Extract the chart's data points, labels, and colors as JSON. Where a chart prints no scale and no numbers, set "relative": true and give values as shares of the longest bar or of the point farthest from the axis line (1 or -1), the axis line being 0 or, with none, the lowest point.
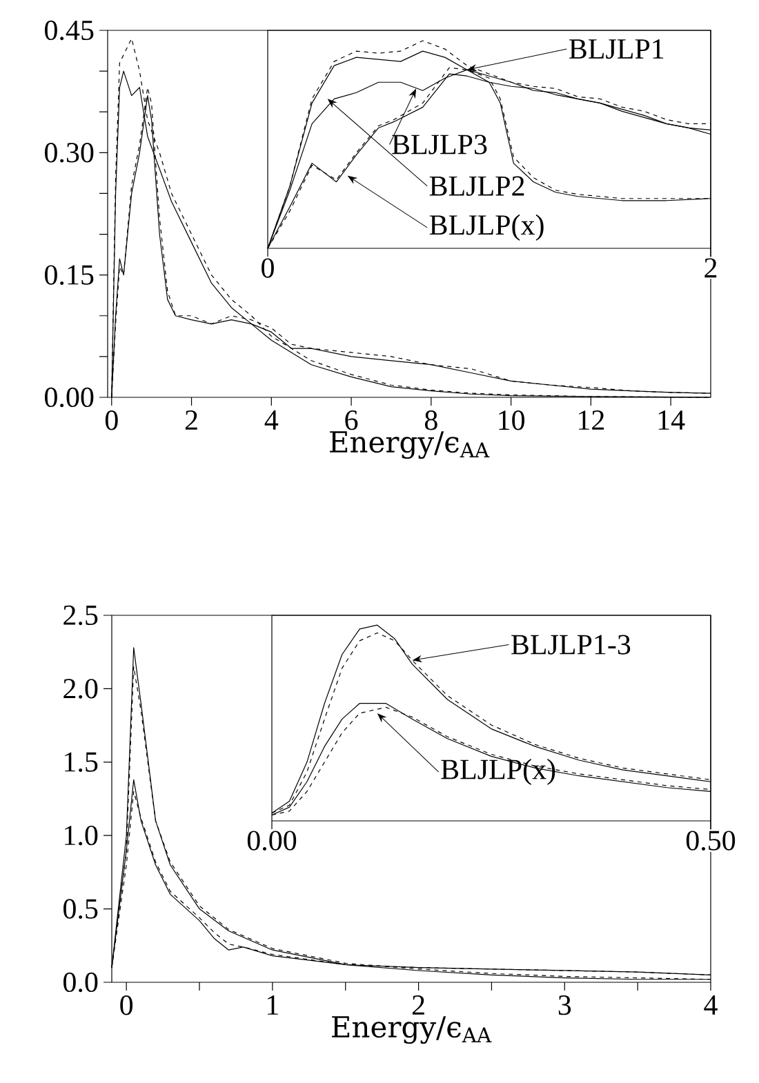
{
  "chart_data": [
    {
      "type": "line",
      "xlabel": "Energy/ϵ$_{AA}$",
      "xlim": [
        -0.1,
        15
      ],
      "ylim": [
        0,
        0.45
      ],
      "xticks": [
        0,
        2,
        4,
        6,
        8,
        10,
        12,
        14
      ],
      "yticks": [
        {
          "value": 0,
          "label": "0.00"
        },
        {
          "value": 0.05,
          "label": null
        },
        {
          "value": 0.1,
          "label": null
        },
        {
          "value": 0.15,
          "label": "0.15"
        },
        {
          "value": 0.2,
          "label": null
        },
        {
          "value": 0.25,
          "label": null
        },
        {
          "value": 0.3,
          "label": "0.30"
        },
        {
          "value": 0.35,
          "label": null
        },
        {
          "value": 0.4,
          "label": null
        },
        {
          "value": 0.45,
          "label": "0.45"
        }
      ],
      "series": [
        {
          "color": "#000000",
          "line_style": "solid",
          "x": [
            0,
            0.1,
            0.2,
            0.3,
            0.5,
            0.7,
            0.9,
            1.2,
            1.5,
            2,
            2.5,
            3,
            3.5,
            4,
            4.5,
            5,
            6,
            7,
            8,
            9,
            10,
            12,
            15
          ],
          "values": [
            0,
            0.25,
            0.38,
            0.4,
            0.37,
            0.38,
            0.32,
            0.28,
            0.24,
            0.19,
            0.14,
            0.11,
            0.09,
            0.07,
            0.055,
            0.04,
            0.025,
            0.013,
            0.008,
            0.004,
            0.002,
            0.001,
            0
          ]
        },
        {
          "color": "#000000",
          "line_style": "dashed",
          "x": [
            0,
            0.1,
            0.2,
            0.3,
            0.5,
            0.7,
            0.9,
            1.2,
            1.5,
            2,
            2.5,
            3,
            3.5,
            4,
            4.5,
            5,
            6,
            7,
            8,
            9,
            10,
            12,
            15
          ],
          "values": [
            0,
            0.27,
            0.41,
            0.42,
            0.44,
            0.4,
            0.34,
            0.3,
            0.25,
            0.2,
            0.15,
            0.12,
            0.1,
            0.075,
            0.06,
            0.045,
            0.028,
            0.015,
            0.009,
            0.005,
            0.003,
            0.001,
            0
          ]
        },
        {
          "color": "#000000",
          "line_style": "solid",
          "x": [
            0,
            0.1,
            0.2,
            0.3,
            0.5,
            0.7,
            0.9,
            1.0,
            1.2,
            1.4,
            1.6,
            2,
            2.5,
            3,
            3.5,
            4,
            4.5,
            5,
            6,
            7,
            8,
            9,
            10,
            11,
            12,
            13,
            14,
            15
          ],
          "values": [
            0,
            0.1,
            0.17,
            0.15,
            0.25,
            0.3,
            0.37,
            0.34,
            0.2,
            0.12,
            0.1,
            0.095,
            0.09,
            0.095,
            0.09,
            0.08,
            0.06,
            0.06,
            0.05,
            0.045,
            0.04,
            0.03,
            0.02,
            0.015,
            0.01,
            0.008,
            0.006,
            0.005
          ]
        },
        {
          "color": "#000000",
          "line_style": "dashed",
          "x": [
            0,
            0.1,
            0.2,
            0.3,
            0.5,
            0.7,
            0.9,
            1.0,
            1.2,
            1.4,
            1.6,
            2,
            2.5,
            3,
            3.5,
            4,
            4.5,
            5,
            6,
            7,
            8,
            9,
            10,
            11,
            12,
            13,
            14,
            15
          ],
          "values": [
            0,
            0.09,
            0.16,
            0.15,
            0.26,
            0.31,
            0.38,
            0.36,
            0.22,
            0.13,
            0.1,
            0.1,
            0.09,
            0.1,
            0.095,
            0.085,
            0.065,
            0.06,
            0.055,
            0.05,
            0.04,
            0.035,
            0.02,
            0.015,
            0.012,
            0.008,
            0.006,
            0.005
          ]
        }
      ]
    },
    {
      "type": "line",
      "relative": true,
      "tick_labels": "x",
      "xlim": [
        0,
        2
      ],
      "xticks": [
        0,
        2
      ],
      "annotations": [
        {
          "text": "BLJLP1",
          "x": 0.9,
          "y": 0.86
        },
        {
          "text": "BLJLP3",
          "x": 0.67,
          "y": 0.77
        },
        {
          "text": "BLJLP2",
          "x": 0.27,
          "y": 0.72
        },
        {
          "text": "BLJLP(x)",
          "x": 0.36,
          "y": 0.35
        }
      ],
      "series": [
        {
          "color": "#000000",
          "line_style": "solid",
          "x": [
            0,
            0.1,
            0.2,
            0.3,
            0.4,
            0.5,
            0.6,
            0.7,
            0.8,
            0.9,
            1.0,
            1.1,
            1.2,
            1.3,
            1.4,
            1.5,
            1.6,
            1.7,
            1.8,
            1.9,
            2.0
          ],
          "values": [
            0,
            0.3,
            0.7,
            0.88,
            0.92,
            0.91,
            0.9,
            0.95,
            0.92,
            0.86,
            0.83,
            0.8,
            0.76,
            0.75,
            0.72,
            0.7,
            0.67,
            0.64,
            0.6,
            0.58,
            0.57
          ]
        },
        {
          "color": "#000000",
          "line_style": "dashed",
          "x": [
            0,
            0.1,
            0.2,
            0.3,
            0.4,
            0.5,
            0.6,
            0.7,
            0.8,
            0.9,
            1.0,
            1.1,
            1.2,
            1.3,
            1.4,
            1.5,
            1.6,
            1.7,
            1.8,
            1.9,
            2.0
          ],
          "values": [
            0,
            0.3,
            0.72,
            0.9,
            0.95,
            0.94,
            0.95,
            1.0,
            0.96,
            0.88,
            0.84,
            0.8,
            0.78,
            0.77,
            0.73,
            0.72,
            0.68,
            0.66,
            0.62,
            0.6,
            0.6
          ]
        },
        {
          "color": "#000000",
          "line_style": "solid",
          "x": [
            0,
            0.1,
            0.2,
            0.3,
            0.4,
            0.5,
            0.6,
            0.7,
            0.8,
            0.9,
            1.0,
            1.1,
            1.2,
            1.3,
            1.4,
            1.5,
            1.6,
            1.7,
            1.8,
            1.9,
            2.0
          ],
          "values": [
            0,
            0.28,
            0.6,
            0.72,
            0.75,
            0.8,
            0.8,
            0.76,
            0.82,
            0.86,
            0.8,
            0.78,
            0.77,
            0.74,
            0.72,
            0.7,
            0.66,
            0.63,
            0.6,
            0.58,
            0.55
          ]
        },
        {
          "color": "#000000",
          "line_style": "solid",
          "x": [
            0,
            0.1,
            0.2,
            0.31,
            0.4,
            0.5,
            0.57,
            0.7,
            0.82,
            0.9,
            1.0,
            1.05,
            1.11,
            1.2,
            1.3,
            1.4,
            1.5,
            1.6,
            1.8,
            2.0
          ],
          "values": [
            0,
            0.2,
            0.41,
            0.32,
            0.45,
            0.58,
            0.61,
            0.68,
            0.84,
            0.83,
            0.8,
            0.7,
            0.41,
            0.32,
            0.27,
            0.25,
            0.24,
            0.23,
            0.23,
            0.24
          ]
        },
        {
          "color": "#000000",
          "line_style": "dashed",
          "x": [
            0,
            0.1,
            0.2,
            0.31,
            0.4,
            0.5,
            0.57,
            0.7,
            0.82,
            0.9,
            1.0,
            1.05,
            1.11,
            1.2,
            1.3,
            1.4,
            1.5,
            1.6,
            1.8,
            2.0
          ],
          "values": [
            0,
            0.18,
            0.4,
            0.33,
            0.46,
            0.59,
            0.62,
            0.7,
            0.87,
            0.86,
            0.82,
            0.72,
            0.44,
            0.34,
            0.28,
            0.26,
            0.25,
            0.24,
            0.24,
            0.24
          ]
        }
      ]
    },
    {
      "type": "line",
      "xlabel": "Energy/ϵ$_{AA}$",
      "xlim": [
        -0.1,
        4
      ],
      "ylim": [
        0,
        2.5
      ],
      "xticks": [
        0,
        {
          "value": 0.5,
          "label": null
        },
        1,
        {
          "value": 1.5,
          "label": null
        },
        2,
        {
          "value": 2.5,
          "label": null
        },
        3,
        {
          "value": 3.5,
          "label": null
        },
        4
      ],
      "yticks": [
        {
          "value": 0,
          "label": "0.0"
        },
        {
          "value": 0.5,
          "label": "0.5"
        },
        {
          "value": 1,
          "label": "1.0"
        },
        {
          "value": 1.5,
          "label": "1.5"
        },
        {
          "value": 2,
          "label": "2.0"
        },
        {
          "value": 2.5,
          "label": "2.5"
        }
      ],
      "series": [
        {
          "color": "#000000",
          "line_style": "solid",
          "x": [
            -0.1,
            0,
            0.05,
            0.1,
            0.2,
            0.3,
            0.5,
            0.7,
            1.0,
            1.5,
            2,
            2.5,
            3,
            3.5,
            4
          ],
          "values": [
            0.1,
            1.0,
            2.28,
            1.9,
            1.1,
            0.8,
            0.5,
            0.35,
            0.22,
            0.12,
            0.08,
            0.05,
            0.03,
            0.02,
            0.02
          ]
        },
        {
          "color": "#000000",
          "line_style": "dashed",
          "x": [
            -0.1,
            0,
            0.05,
            0.1,
            0.2,
            0.3,
            0.5,
            0.7,
            1.0,
            1.5,
            2,
            2.5,
            3,
            3.5,
            4
          ],
          "values": [
            0.1,
            0.9,
            2.15,
            1.85,
            1.1,
            0.82,
            0.52,
            0.36,
            0.23,
            0.13,
            0.09,
            0.06,
            0.04,
            0.03,
            0.02
          ]
        },
        {
          "color": "#000000",
          "line_style": "solid",
          "x": [
            -0.1,
            0,
            0.05,
            0.1,
            0.2,
            0.3,
            0.5,
            0.6,
            0.7,
            0.8,
            1.0,
            1.5,
            2,
            2.5,
            3,
            3.5,
            4
          ],
          "values": [
            0.1,
            0.9,
            1.38,
            1.1,
            0.8,
            0.6,
            0.42,
            0.3,
            0.22,
            0.24,
            0.18,
            0.12,
            0.1,
            0.09,
            0.08,
            0.07,
            0.05
          ]
        },
        {
          "color": "#000000",
          "line_style": "dashed",
          "x": [
            -0.1,
            0,
            0.05,
            0.1,
            0.2,
            0.3,
            0.5,
            0.6,
            0.7,
            0.8,
            1.0,
            1.5,
            2,
            2.5,
            3,
            3.5,
            4
          ],
          "values": [
            0.1,
            0.8,
            1.3,
            1.12,
            0.82,
            0.62,
            0.44,
            0.34,
            0.26,
            0.24,
            0.19,
            0.12,
            0.1,
            0.09,
            0.08,
            0.07,
            0.05
          ]
        }
      ]
    },
    {
      "type": "line",
      "relative": true,
      "tick_labels": "x",
      "xlim": [
        0,
        0.5
      ],
      "xticks": [
        {
          "value": 0,
          "label": "0.00"
        },
        {
          "value": 0.5,
          "label": "0.50"
        }
      ],
      "annotations": [
        {
          "text": "BLJLP1-3",
          "x": 0.16,
          "y": 0.82
        },
        {
          "text": "BLJLP(x)",
          "x": 0.12,
          "y": 0.55
        }
      ],
      "series": [
        {
          "color": "#000000",
          "line_style": "solid",
          "x": [
            0,
            0.02,
            0.04,
            0.06,
            0.08,
            0.1,
            0.12,
            0.14,
            0.16,
            0.2,
            0.25,
            0.3,
            0.35,
            0.4,
            0.45,
            0.5
          ],
          "values": [
            0.04,
            0.1,
            0.3,
            0.6,
            0.85,
            0.98,
            1.0,
            0.93,
            0.8,
            0.62,
            0.47,
            0.38,
            0.31,
            0.26,
            0.23,
            0.2
          ]
        },
        {
          "color": "#000000",
          "line_style": "dashed",
          "x": [
            0,
            0.02,
            0.04,
            0.06,
            0.08,
            0.1,
            0.12,
            0.14,
            0.16,
            0.2,
            0.25,
            0.3,
            0.35,
            0.4,
            0.45,
            0.5
          ],
          "values": [
            0.04,
            0.08,
            0.25,
            0.52,
            0.78,
            0.92,
            0.96,
            0.92,
            0.82,
            0.64,
            0.49,
            0.39,
            0.32,
            0.27,
            0.24,
            0.21
          ]
        },
        {
          "color": "#000000",
          "line_style": "solid",
          "x": [
            0,
            0.02,
            0.04,
            0.06,
            0.08,
            0.1,
            0.13,
            0.16,
            0.2,
            0.25,
            0.3,
            0.35,
            0.4,
            0.45,
            0.5
          ],
          "values": [
            0.03,
            0.07,
            0.2,
            0.38,
            0.52,
            0.6,
            0.6,
            0.52,
            0.42,
            0.33,
            0.27,
            0.23,
            0.2,
            0.17,
            0.15
          ]
        },
        {
          "color": "#000000",
          "line_style": "dashed",
          "x": [
            0,
            0.02,
            0.04,
            0.06,
            0.08,
            0.1,
            0.13,
            0.16,
            0.2,
            0.25,
            0.3,
            0.35,
            0.4,
            0.45,
            0.5
          ],
          "values": [
            0.03,
            0.05,
            0.15,
            0.3,
            0.45,
            0.55,
            0.58,
            0.53,
            0.43,
            0.34,
            0.28,
            0.24,
            0.21,
            0.18,
            0.16
          ]
        }
      ]
    }
  ]
}
